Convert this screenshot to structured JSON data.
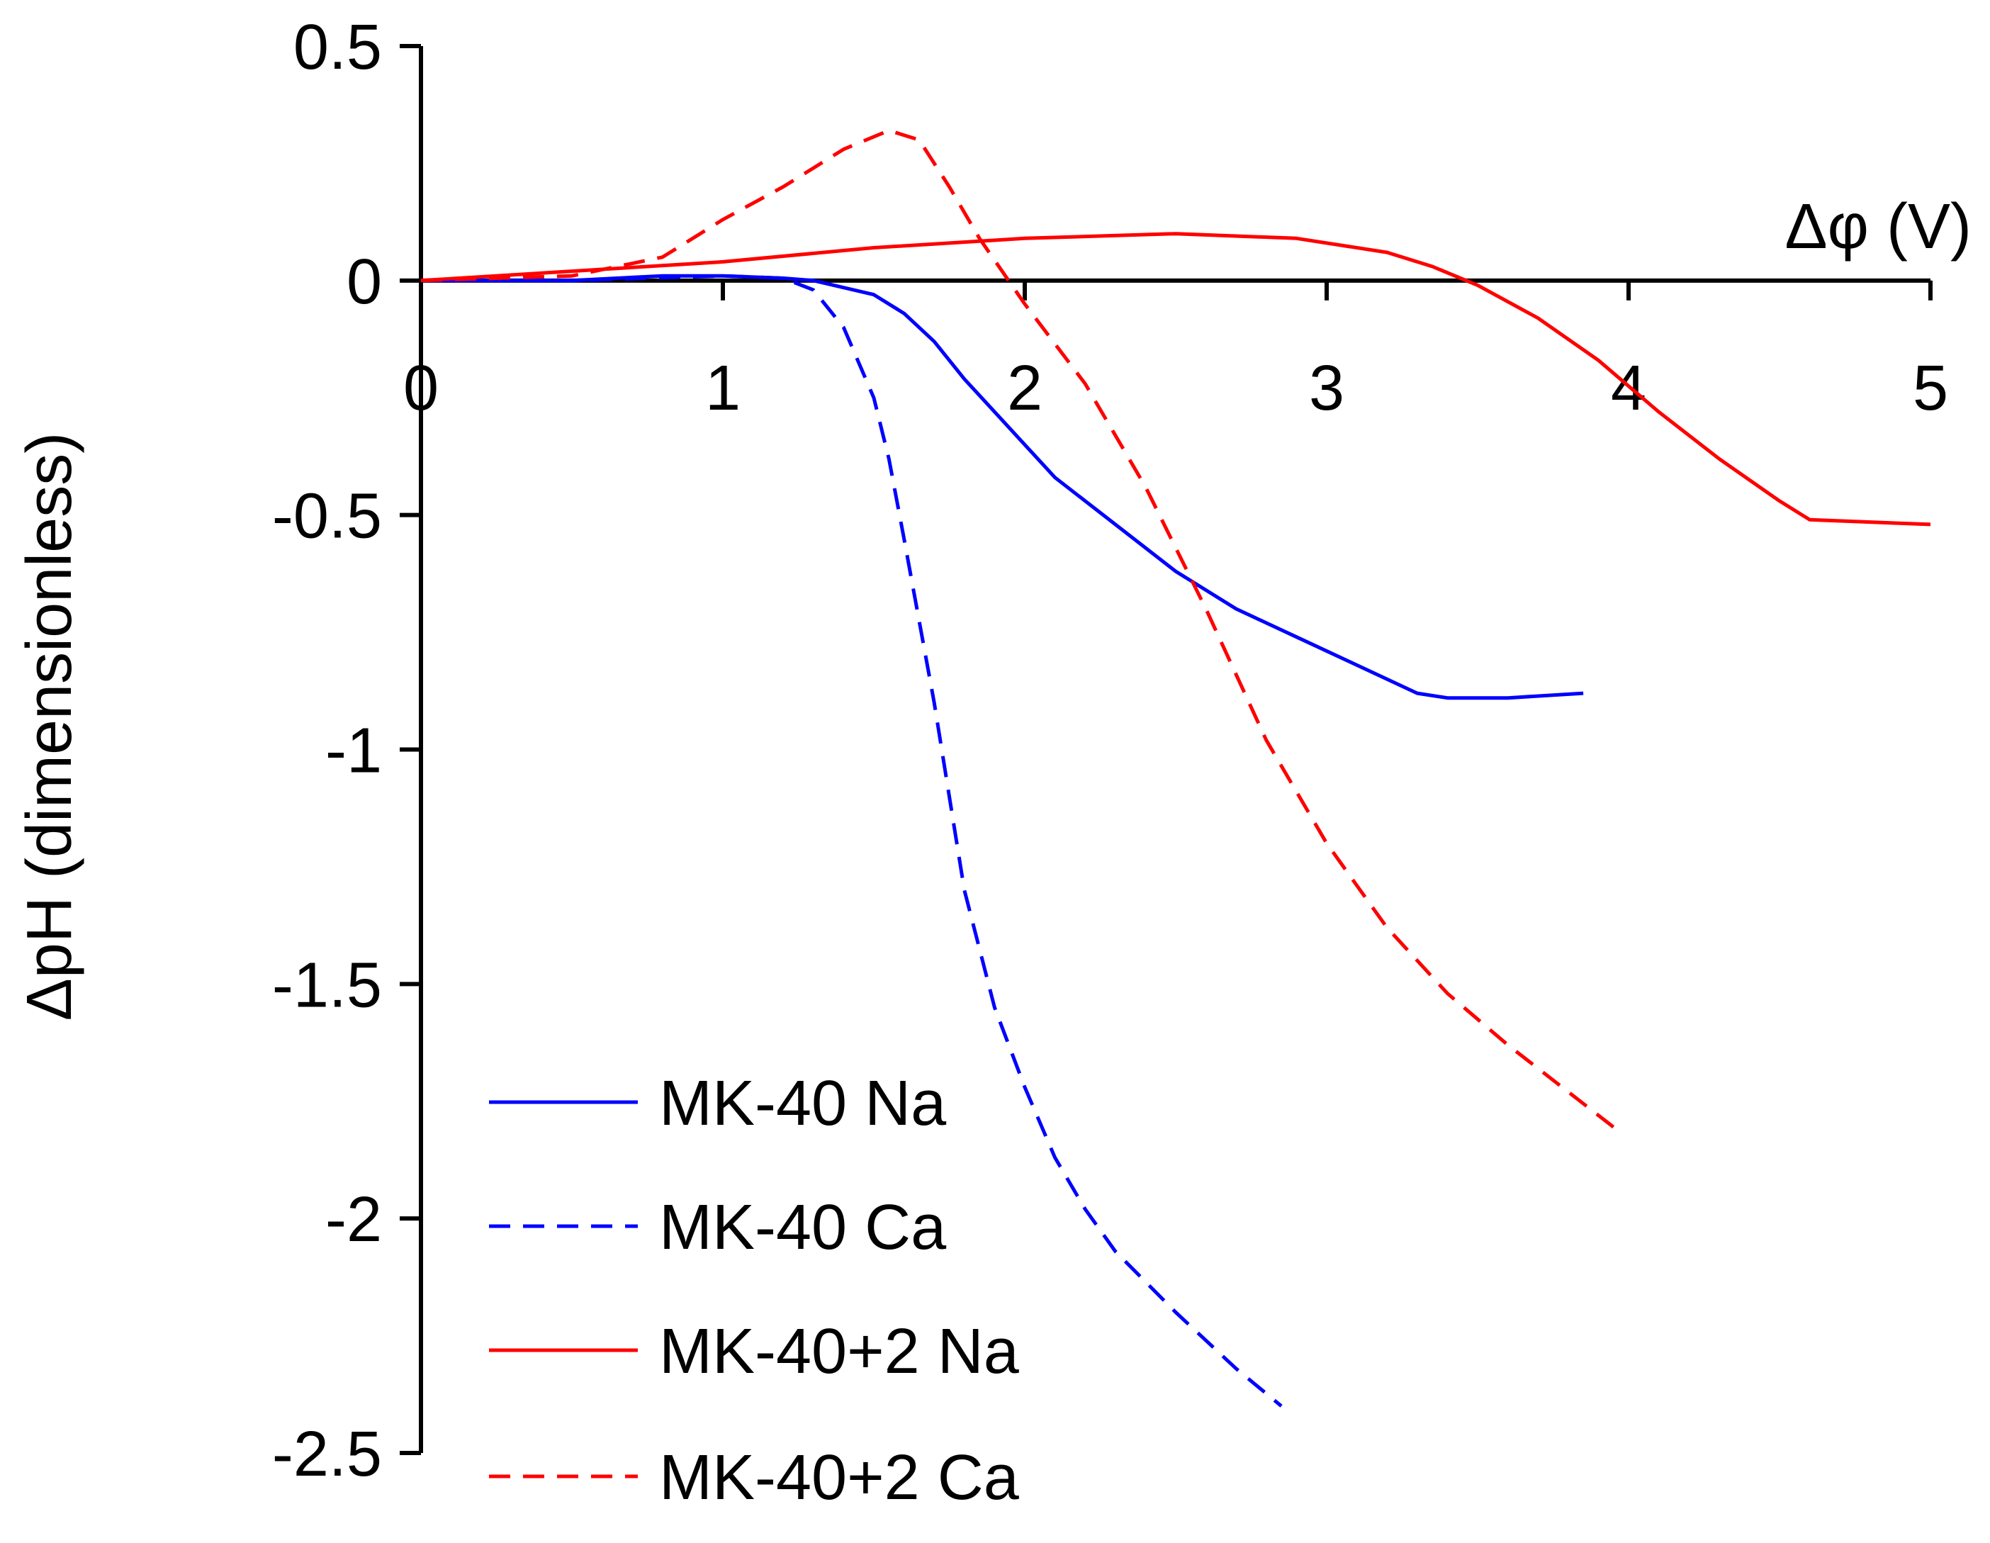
{
  "chart_data": {
    "type": "line",
    "title": "",
    "xlabel": "Δφ (V)",
    "ylabel": "ΔpH (dimensionless)",
    "xlim": [
      0,
      5
    ],
    "ylim": [
      -2.5,
      0.5
    ],
    "x_ticks": [
      0,
      1,
      2,
      3,
      4,
      5
    ],
    "x_tick_labels": [
      "0",
      "1",
      "2",
      "3",
      "4",
      "5"
    ],
    "y_ticks": [
      0.5,
      0,
      -0.5,
      -1,
      -1.5,
      -2,
      -2.5
    ],
    "y_tick_labels": [
      "0.5",
      "0",
      "-0.5",
      "-1",
      "-1.5",
      "-2",
      "-2.5"
    ],
    "grid": false,
    "legend_position": "bottom-left",
    "series": [
      {
        "name": "MK-40 Na",
        "color": "#0000ff",
        "dash": "solid",
        "points": [
          [
            0,
            0
          ],
          [
            0.5,
            0.0
          ],
          [
            0.8,
            0.01
          ],
          [
            1.0,
            0.01
          ],
          [
            1.2,
            0.005
          ],
          [
            1.3,
            0.0
          ],
          [
            1.5,
            -0.03
          ],
          [
            1.6,
            -0.07
          ],
          [
            1.7,
            -0.13
          ],
          [
            1.8,
            -0.21
          ],
          [
            1.9,
            -0.28
          ],
          [
            2.0,
            -0.35
          ],
          [
            2.1,
            -0.42
          ],
          [
            2.3,
            -0.52
          ],
          [
            2.5,
            -0.62
          ],
          [
            2.7,
            -0.7
          ],
          [
            2.9,
            -0.76
          ],
          [
            3.1,
            -0.82
          ],
          [
            3.3,
            -0.88
          ],
          [
            3.4,
            -0.89
          ],
          [
            3.6,
            -0.89
          ],
          [
            3.85,
            -0.88
          ]
        ]
      },
      {
        "name": "MK-40 Ca",
        "color": "#0000ff",
        "dash": "dashed",
        "points": [
          [
            0,
            0
          ],
          [
            0.5,
            0.0
          ],
          [
            1.0,
            0.01
          ],
          [
            1.2,
            0.005
          ],
          [
            1.3,
            -0.02
          ],
          [
            1.4,
            -0.1
          ],
          [
            1.5,
            -0.25
          ],
          [
            1.55,
            -0.38
          ],
          [
            1.6,
            -0.55
          ],
          [
            1.7,
            -0.9
          ],
          [
            1.75,
            -1.1
          ],
          [
            1.8,
            -1.3
          ],
          [
            1.9,
            -1.55
          ],
          [
            2.0,
            -1.72
          ],
          [
            2.1,
            -1.87
          ],
          [
            2.2,
            -1.98
          ],
          [
            2.3,
            -2.07
          ],
          [
            2.5,
            -2.2
          ],
          [
            2.7,
            -2.32
          ],
          [
            2.85,
            -2.4
          ]
        ]
      },
      {
        "name": "MK-40+2 Na",
        "color": "#ff0000",
        "dash": "solid",
        "points": [
          [
            0,
            0
          ],
          [
            0.5,
            0.02
          ],
          [
            1.0,
            0.04
          ],
          [
            1.5,
            0.07
          ],
          [
            2.0,
            0.09
          ],
          [
            2.5,
            0.1
          ],
          [
            2.9,
            0.09
          ],
          [
            3.2,
            0.06
          ],
          [
            3.35,
            0.03
          ],
          [
            3.5,
            -0.01
          ],
          [
            3.7,
            -0.08
          ],
          [
            3.9,
            -0.17
          ],
          [
            4.1,
            -0.28
          ],
          [
            4.3,
            -0.38
          ],
          [
            4.5,
            -0.47
          ],
          [
            4.6,
            -0.51
          ],
          [
            5.0,
            -0.52
          ]
        ]
      },
      {
        "name": "MK-40+2 Ca",
        "color": "#ff0000",
        "dash": "dashed",
        "points": [
          [
            0,
            0
          ],
          [
            0.5,
            0.01
          ],
          [
            0.8,
            0.05
          ],
          [
            1.0,
            0.13
          ],
          [
            1.2,
            0.2
          ],
          [
            1.4,
            0.28
          ],
          [
            1.55,
            0.32
          ],
          [
            1.65,
            0.3
          ],
          [
            1.75,
            0.2
          ],
          [
            1.85,
            0.09
          ],
          [
            2.0,
            -0.05
          ],
          [
            2.2,
            -0.22
          ],
          [
            2.4,
            -0.44
          ],
          [
            2.6,
            -0.7
          ],
          [
            2.8,
            -0.98
          ],
          [
            3.0,
            -1.2
          ],
          [
            3.2,
            -1.38
          ],
          [
            3.4,
            -1.52
          ],
          [
            3.6,
            -1.63
          ],
          [
            3.8,
            -1.73
          ],
          [
            3.98,
            -1.82
          ]
        ]
      }
    ]
  }
}
